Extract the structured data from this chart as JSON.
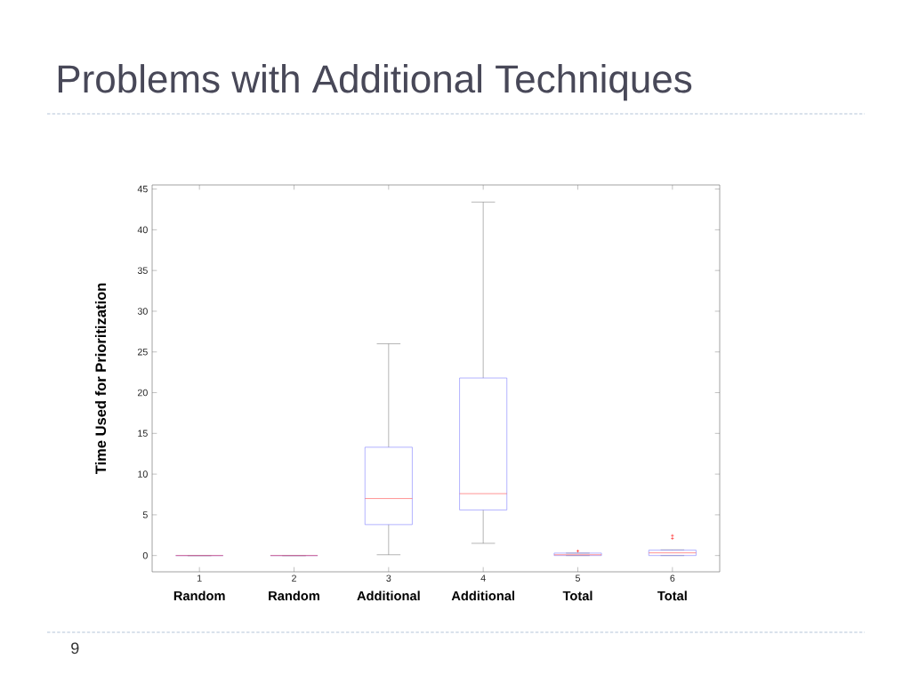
{
  "chart_data": {
    "type": "box",
    "title": "Problems with Additional Techniques",
    "ylabel": "Time Used for Prioritization",
    "x": [
      1,
      2,
      3,
      4,
      5,
      6
    ],
    "xlim": [
      0.5,
      6.5
    ],
    "xticks": [
      1,
      2,
      3,
      4,
      5,
      6
    ],
    "ylim": [
      -2,
      45.5
    ],
    "yticks": [
      0,
      5,
      10,
      15,
      20,
      25,
      30,
      35,
      40,
      45
    ],
    "color": "#7f7fff",
    "marker": "cross",
    "boxes": [
      {
        "low": 0,
        "q1": 0,
        "median": 0,
        "q3": 0,
        "high": 0
      },
      {
        "low": 0,
        "q1": 0,
        "median": 0,
        "q3": 0,
        "high": 0
      },
      {
        "low": 0.1,
        "q1": 3.8,
        "median": 7.0,
        "q3": 13.3,
        "high": 26.0
      },
      {
        "low": 1.5,
        "q1": 5.6,
        "median": 7.6,
        "q3": 21.8,
        "high": 43.4
      },
      {
        "low": 0,
        "q1": 0,
        "median": 0.1,
        "q3": 0.3,
        "high": 0.3,
        "outliers": [
          0.55
        ]
      },
      {
        "low": 0,
        "q1": 0,
        "median": 0.33,
        "q3": 0.66,
        "high": 0.7,
        "outliers": [
          2.1,
          2.45
        ]
      }
    ],
    "annotations": [
      "Random",
      "Random",
      "Additional",
      "Additional",
      "Total",
      "Total",
      "9"
    ]
  }
}
